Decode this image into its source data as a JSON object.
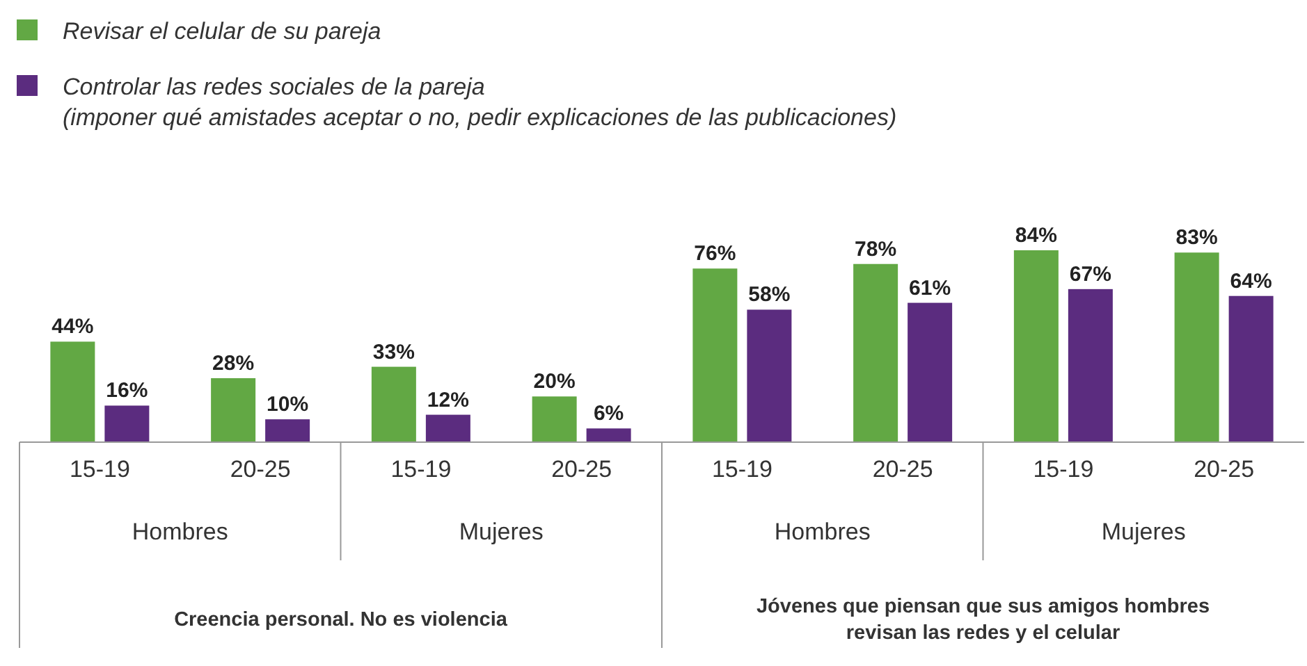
{
  "chart_data": {
    "type": "bar",
    "categories": [
      "15-19",
      "20-25",
      "15-19",
      "20-25",
      "15-19",
      "20-25",
      "15-19",
      "20-25"
    ],
    "series": [
      {
        "name": "Revisar el celular de su pareja",
        "color": "#62a844",
        "values": [
          44,
          28,
          33,
          20,
          76,
          78,
          84,
          83
        ],
        "value_labels": [
          "44%",
          "28%",
          "33%",
          "20%",
          "76%",
          "78%",
          "84%",
          "83%"
        ]
      },
      {
        "name": "Controlar las redes sociales de la pareja\n(imponer qué amistades aceptar o no, pedir explicaciones de las publicaciones)",
        "color": "#5b2c7f",
        "values": [
          16,
          10,
          12,
          6,
          58,
          61,
          67,
          64
        ],
        "value_labels": [
          "16%",
          "10%",
          "12%",
          "6%",
          "58%",
          "61%",
          "67%",
          "64%"
        ]
      }
    ],
    "legend": "top left",
    "annotations": [
      "Hombres",
      "Mujeres",
      "Hombres",
      "Mujeres",
      "Creencia personal. No es violencia",
      "Jóvenes que piensan que sus amigos hombres revisan las redes y el celular"
    ]
  }
}
